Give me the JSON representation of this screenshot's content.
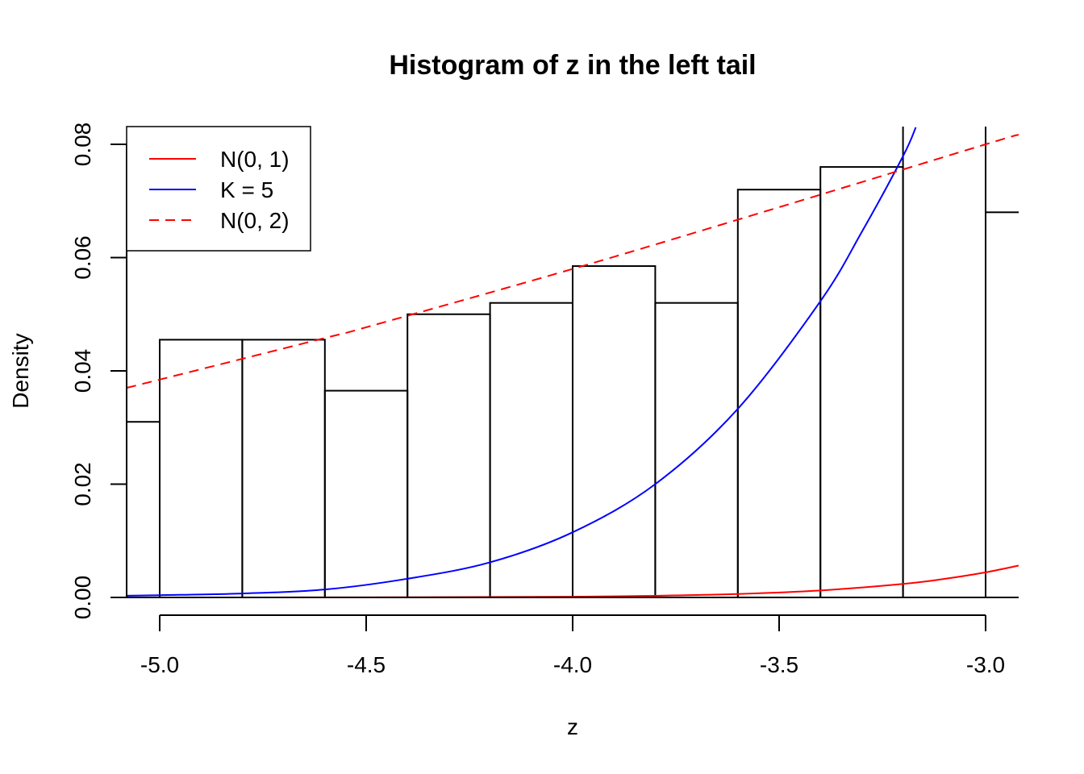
{
  "chart_data": {
    "type": "bar",
    "title": "Histogram of z in the left tail",
    "xlabel": "z",
    "ylabel": "Density",
    "xlim": [
      -5.08,
      -2.92
    ],
    "ylim": [
      0,
      0.083
    ],
    "grid": false,
    "legend_position": "top-left",
    "x_ticks": [
      {
        "value": -5.0,
        "label": "-5.0"
      },
      {
        "value": -4.5,
        "label": "-4.5"
      },
      {
        "value": -4.0,
        "label": "-4.0"
      },
      {
        "value": -3.5,
        "label": "-3.5"
      },
      {
        "value": -3.0,
        "label": "-3.0"
      }
    ],
    "y_ticks": [
      {
        "value": 0.0,
        "label": "0.00"
      },
      {
        "value": 0.02,
        "label": "0.02"
      },
      {
        "value": 0.04,
        "label": "0.04"
      },
      {
        "value": 0.06,
        "label": "0.06"
      },
      {
        "value": 0.08,
        "label": "0.08"
      }
    ],
    "bins": [
      {
        "from": -5.2,
        "to": -5.0,
        "density": 0.031
      },
      {
        "from": -5.0,
        "to": -4.8,
        "density": 0.0455
      },
      {
        "from": -4.8,
        "to": -4.6,
        "density": 0.0455
      },
      {
        "from": -4.6,
        "to": -4.4,
        "density": 0.0365
      },
      {
        "from": -4.4,
        "to": -4.2,
        "density": 0.05
      },
      {
        "from": -4.2,
        "to": -4.0,
        "density": 0.052
      },
      {
        "from": -4.0,
        "to": -3.8,
        "density": 0.0585
      },
      {
        "from": -3.8,
        "to": -3.6,
        "density": 0.052
      },
      {
        "from": -3.6,
        "to": -3.4,
        "density": 0.072
      },
      {
        "from": -3.4,
        "to": -3.2,
        "density": 0.076
      },
      {
        "from": -3.2,
        "to": -3.0,
        "density": 0.09
      },
      {
        "from": -3.0,
        "to": -2.8,
        "density": 0.068
      }
    ],
    "series": [
      {
        "name": "N(0, 1)",
        "color": "#ff0000",
        "dash": false,
        "x": [
          -5.08,
          -4.5,
          -4.0,
          -3.8,
          -3.6,
          -3.4,
          -3.2,
          -3.1,
          -3.0,
          -2.92
        ],
        "y": [
          0.0,
          2e-05,
          0.00013,
          0.00029,
          0.00061,
          0.00123,
          0.00238,
          0.00327,
          0.00443,
          0.00562
        ]
      },
      {
        "name": "K = 5",
        "color": "#0000ff",
        "dash": false,
        "x": [
          -5.08,
          -5.0,
          -4.8,
          -4.6,
          -4.4,
          -4.2,
          -4.0,
          -3.8,
          -3.6,
          -3.4,
          -3.3,
          -3.2,
          -3.169
        ],
        "y": [
          0.0003,
          0.0004,
          0.0007,
          0.0014,
          0.0033,
          0.0062,
          0.0115,
          0.02,
          0.0333,
          0.0523,
          0.0645,
          0.0779,
          0.083
        ]
      },
      {
        "name": "N(0, 2)",
        "color": "#ff0000",
        "dash": true,
        "x": [
          -5.08,
          -4.6,
          -4.5,
          -4.0,
          -3.5,
          -3.0,
          -2.92
        ],
        "y": [
          0.037,
          0.0458,
          0.0477,
          0.058,
          0.0689,
          0.08,
          0.0817
        ]
      }
    ]
  }
}
